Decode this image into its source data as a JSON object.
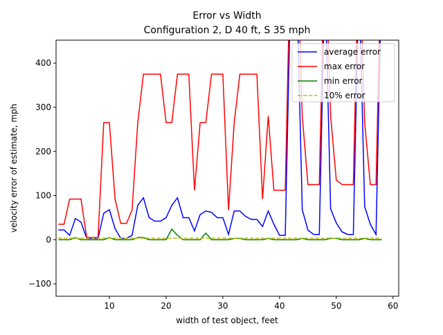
{
  "chart_data": {
    "type": "line",
    "title": "Error vs Width",
    "subtitle": "Configuration 2, D 40 ft, S 35 mph",
    "x_label": "width of test object, feet",
    "y_label": "velocity error of estimate, mph",
    "x": [
      1,
      2,
      3,
      4,
      5,
      6,
      7,
      8,
      9,
      10,
      11,
      12,
      13,
      14,
      15,
      16,
      17,
      18,
      19,
      20,
      21,
      22,
      23,
      24,
      25,
      26,
      27,
      28,
      29,
      30,
      31,
      32,
      33,
      34,
      35,
      36,
      37,
      38,
      39,
      40,
      41,
      42,
      43,
      44,
      45,
      46,
      47,
      48,
      49,
      50,
      51,
      52,
      53,
      54,
      55,
      56,
      57,
      58
    ],
    "series": [
      {
        "name": "average error",
        "color": "#0000ff",
        "dashed": false,
        "values": [
          22,
          22,
          10,
          48,
          40,
          3,
          3,
          3,
          60,
          68,
          25,
          3,
          3,
          10,
          78,
          95,
          50,
          42,
          42,
          50,
          78,
          95,
          50,
          50,
          20,
          57,
          65,
          62,
          50,
          50,
          12,
          65,
          65,
          53,
          46,
          46,
          30,
          65,
          35,
          10,
          10,
          600,
          600,
          68,
          22,
          12,
          12,
          600,
          70,
          38,
          18,
          12,
          12,
          600,
          75,
          35,
          12,
          600
        ]
      },
      {
        "name": "max error",
        "color": "#ff0000",
        "dashed": false,
        "values": [
          35,
          35,
          92,
          92,
          92,
          5,
          5,
          5,
          265,
          265,
          92,
          37,
          37,
          67,
          265,
          375,
          375,
          375,
          375,
          265,
          265,
          375,
          375,
          375,
          112,
          265,
          265,
          375,
          375,
          375,
          67,
          265,
          375,
          375,
          375,
          375,
          92,
          280,
          112,
          112,
          112,
          700,
          700,
          280,
          125,
          125,
          125,
          700,
          280,
          135,
          125,
          125,
          125,
          700,
          265,
          125,
          125,
          700
        ]
      },
      {
        "name": "min error",
        "color": "#008000",
        "dashed": false,
        "values": [
          0,
          0,
          0,
          5,
          0,
          0,
          0,
          0,
          0,
          5,
          0,
          0,
          0,
          0,
          5,
          5,
          0,
          0,
          0,
          0,
          24,
          10,
          0,
          0,
          0,
          0,
          15,
          0,
          0,
          0,
          0,
          3,
          3,
          0,
          0,
          0,
          0,
          3,
          0,
          0,
          0,
          0,
          0,
          3,
          0,
          0,
          0,
          0,
          3,
          3,
          0,
          0,
          0,
          0,
          3,
          0,
          0,
          0
        ]
      },
      {
        "name": "10% error",
        "color": "#bfbf00",
        "dashed": true,
        "values": [
          3.5,
          3.5,
          3.5,
          3.5,
          3.5,
          3.5,
          3.5,
          3.5,
          3.5,
          3.5,
          3.5,
          3.5,
          3.5,
          3.5,
          3.5,
          3.5,
          3.5,
          3.5,
          3.5,
          3.5,
          3.5,
          3.5,
          3.5,
          3.5,
          3.5,
          3.5,
          3.5,
          3.5,
          3.5,
          3.5,
          3.5,
          3.5,
          3.5,
          3.5,
          3.5,
          3.5,
          3.5,
          3.5,
          3.5,
          3.5,
          3.5,
          3.5,
          3.5,
          3.5,
          3.5,
          3.5,
          3.5,
          3.5,
          3.5,
          3.5,
          3.5,
          3.5,
          3.5,
          3.5,
          3.5,
          3.5,
          3.5,
          3.5
        ]
      }
    ],
    "xlim": [
      0.6,
      61
    ],
    "ylim": [
      -128,
      452
    ],
    "xticks": [
      10,
      20,
      30,
      40,
      50,
      60
    ],
    "yticks": [
      {
        "value": -100,
        "label": "−100"
      },
      0,
      100,
      200,
      300,
      400
    ],
    "legend": "upper right"
  }
}
